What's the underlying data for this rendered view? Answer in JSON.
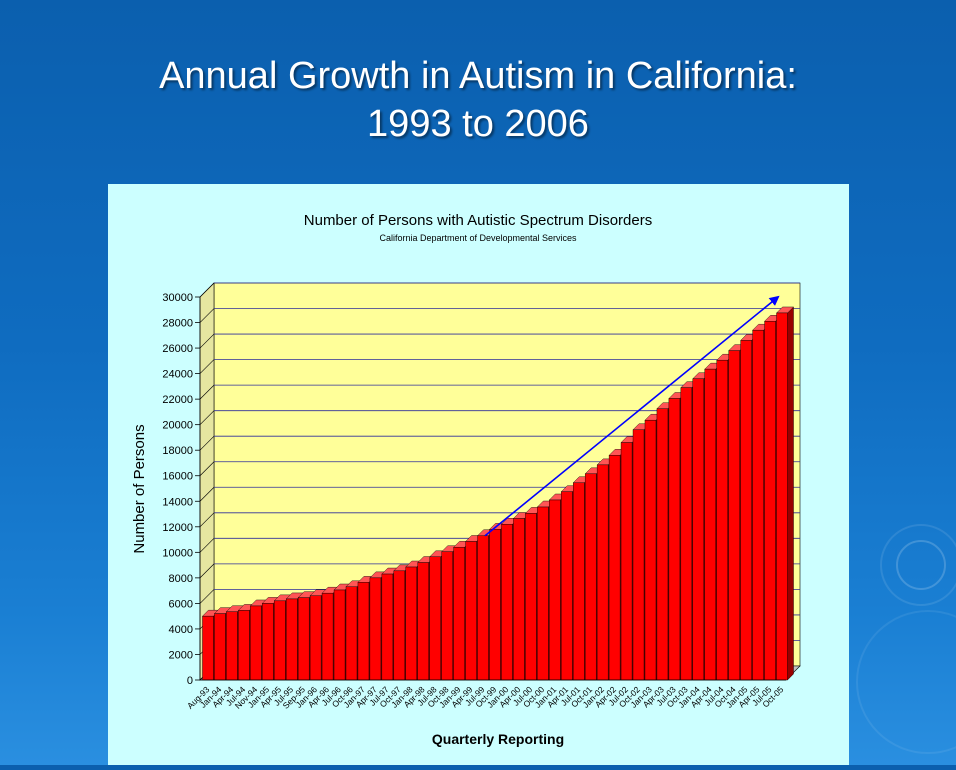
{
  "slide": {
    "title_line1": "Annual Growth in Autism in California:",
    "title_line2": "1993 to 2006"
  },
  "colors": {
    "background": "#0f6cc0",
    "panel": "#ccffff",
    "plot_wall": "#ffff99",
    "bar": "#ff0000",
    "trend_arrow": "#0000ff"
  },
  "chart_data": {
    "type": "bar",
    "title": "Number of Persons with Autistic Spectrum Disorders",
    "subtitle": "California Department of Developmental Services",
    "xlabel": "Quarterly Reporting",
    "ylabel": "Number of Persons",
    "ylim": [
      0,
      30000
    ],
    "yticks": [
      0,
      2000,
      4000,
      6000,
      8000,
      10000,
      12000,
      14000,
      16000,
      18000,
      20000,
      22000,
      24000,
      26000,
      28000,
      30000
    ],
    "grid": true,
    "legend": "none",
    "three_d": true,
    "categories": [
      "Aug-93",
      "Jan-94",
      "Apr-94",
      "Jul-94",
      "Nov-94",
      "Jan-95",
      "Apr-95",
      "Jul-95",
      "Sep-95",
      "Jan-96",
      "Apr-96",
      "Jul-96",
      "Oct-96",
      "Jan-97",
      "Apr-97",
      "Jul-97",
      "Oct-97",
      "Jan-98",
      "Apr-98",
      "Jul-98",
      "Oct-98",
      "Jan-99",
      "Apr-99",
      "Jul-99",
      "Oct-99",
      "Jan-00",
      "Apr-00",
      "Jul-00",
      "Oct-00",
      "Jan-01",
      "Apr-01",
      "Jul-01",
      "Oct-01",
      "Jan-02",
      "Apr-02",
      "Jul-02",
      "Oct-02",
      "Jan-03",
      "Apr-03",
      "Jul-03",
      "Oct-03",
      "Jan-04",
      "Apr-04",
      "Jul-04",
      "Oct-04",
      "Jan-05",
      "Apr-05",
      "Jul-05",
      "Oct-05"
    ],
    "values": [
      5000,
      5200,
      5350,
      5450,
      5800,
      6000,
      6200,
      6350,
      6450,
      6600,
      6800,
      7050,
      7300,
      7650,
      8000,
      8300,
      8550,
      8850,
      9200,
      9650,
      10050,
      10400,
      10850,
      11300,
      11800,
      12200,
      12650,
      13050,
      13550,
      14100,
      14750,
      15450,
      16150,
      16850,
      17600,
      18600,
      19600,
      20350,
      21250,
      22050,
      22900,
      23600,
      24350,
      25050,
      25800,
      26600,
      27400,
      28100,
      28750
    ],
    "trend_arrow": {
      "from": [
        "Jul-99",
        11300
      ],
      "to": [
        "Oct-05",
        30000
      ]
    }
  }
}
